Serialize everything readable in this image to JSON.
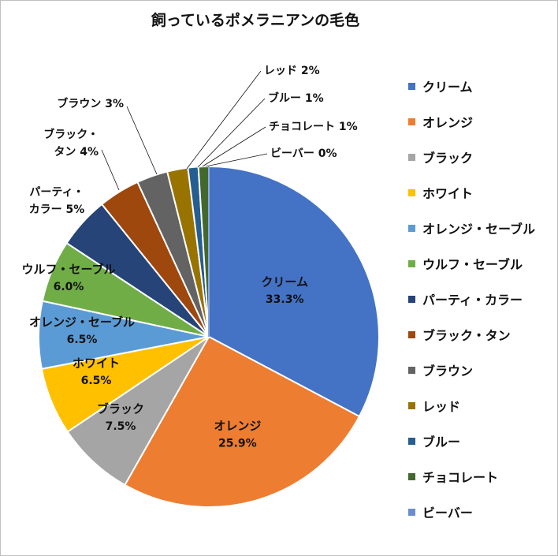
{
  "chart_data": {
    "type": "pie",
    "title": "飼っているポメラニアンの毛色",
    "legend_position": "right",
    "slices": [
      {
        "name": "クリーム",
        "value": 33.3,
        "label": "33.3%",
        "color": "#4472C4"
      },
      {
        "name": "オレンジ",
        "value": 25.9,
        "label": "25.9%",
        "color": "#ED7D31"
      },
      {
        "name": "ブラック",
        "value": 7.5,
        "label": "7.5%",
        "color": "#A5A5A5"
      },
      {
        "name": "ホワイト",
        "value": 6.5,
        "label": "6.5%",
        "color": "#FFC000"
      },
      {
        "name": "オレンジ・セーブル",
        "value": 6.5,
        "label": "6.5%",
        "color": "#5B9BD5"
      },
      {
        "name": "ウルフ・セーブル",
        "value": 6.0,
        "label": "6.0%",
        "color": "#70AD47"
      },
      {
        "name": "パーティ・カラー",
        "value": 5,
        "label": "5%",
        "color": "#264478"
      },
      {
        "name": "ブラック・タン",
        "value": 4,
        "label": "4%",
        "color": "#9E480E"
      },
      {
        "name": "ブラウン",
        "value": 3,
        "label": "3%",
        "color": "#636363"
      },
      {
        "name": "レッド",
        "value": 2,
        "label": "2%",
        "color": "#997300"
      },
      {
        "name": "ブルー",
        "value": 1,
        "label": "1%",
        "color": "#255E91"
      },
      {
        "name": "チョコレート",
        "value": 1,
        "label": "1%",
        "color": "#43682B"
      },
      {
        "name": "ビーバー",
        "value": 0,
        "label": "0%",
        "color": "#698ED0"
      }
    ]
  },
  "label_text": {
    "クリーム": [
      "クリーム",
      "33.3%"
    ],
    "オレンジ": [
      "オレンジ",
      "25.9%"
    ],
    "ブラック": [
      "ブラック",
      "7.5%"
    ],
    "ホワイト": [
      "ホワイト",
      "6.5%"
    ],
    "オレンジ・セーブル": [
      "オレンジ・セーブル",
      "6.5%"
    ],
    "ウルフ・セーブル": [
      "ウルフ・セーブル",
      "6.0%"
    ],
    "パーティ・カラー": [
      "パーティ・",
      "カラー 5%"
    ],
    "ブラック・タン": [
      "ブラック・",
      "タン 4%"
    ],
    "ブラウン": [
      "ブラウン 3%"
    ],
    "レッド": [
      "レッド 2%"
    ],
    "ブルー": [
      "ブルー 1%"
    ],
    "チョコレート": [
      "チョコレート 1%"
    ],
    "ビーバー": [
      "ビーバー 0%"
    ]
  },
  "legend": [
    {
      "label": "クリーム",
      "color": "#4472C4"
    },
    {
      "label": "オレンジ",
      "color": "#ED7D31"
    },
    {
      "label": "ブラック",
      "color": "#A5A5A5"
    },
    {
      "label": "ホワイト",
      "color": "#FFC000"
    },
    {
      "label": "オレンジ・セーブル",
      "color": "#5B9BD5"
    },
    {
      "label": "ウルフ・セーブル",
      "color": "#70AD47"
    },
    {
      "label": "パーティ・カラー",
      "color": "#264478"
    },
    {
      "label": "ブラック・タン",
      "color": "#9E480E"
    },
    {
      "label": "ブラウン",
      "color": "#636363"
    },
    {
      "label": "レッド",
      "color": "#997300"
    },
    {
      "label": "ブルー",
      "color": "#255E91"
    },
    {
      "label": "チョコレート",
      "color": "#43682B"
    },
    {
      "label": "ビーバー",
      "color": "#698ED0"
    }
  ]
}
